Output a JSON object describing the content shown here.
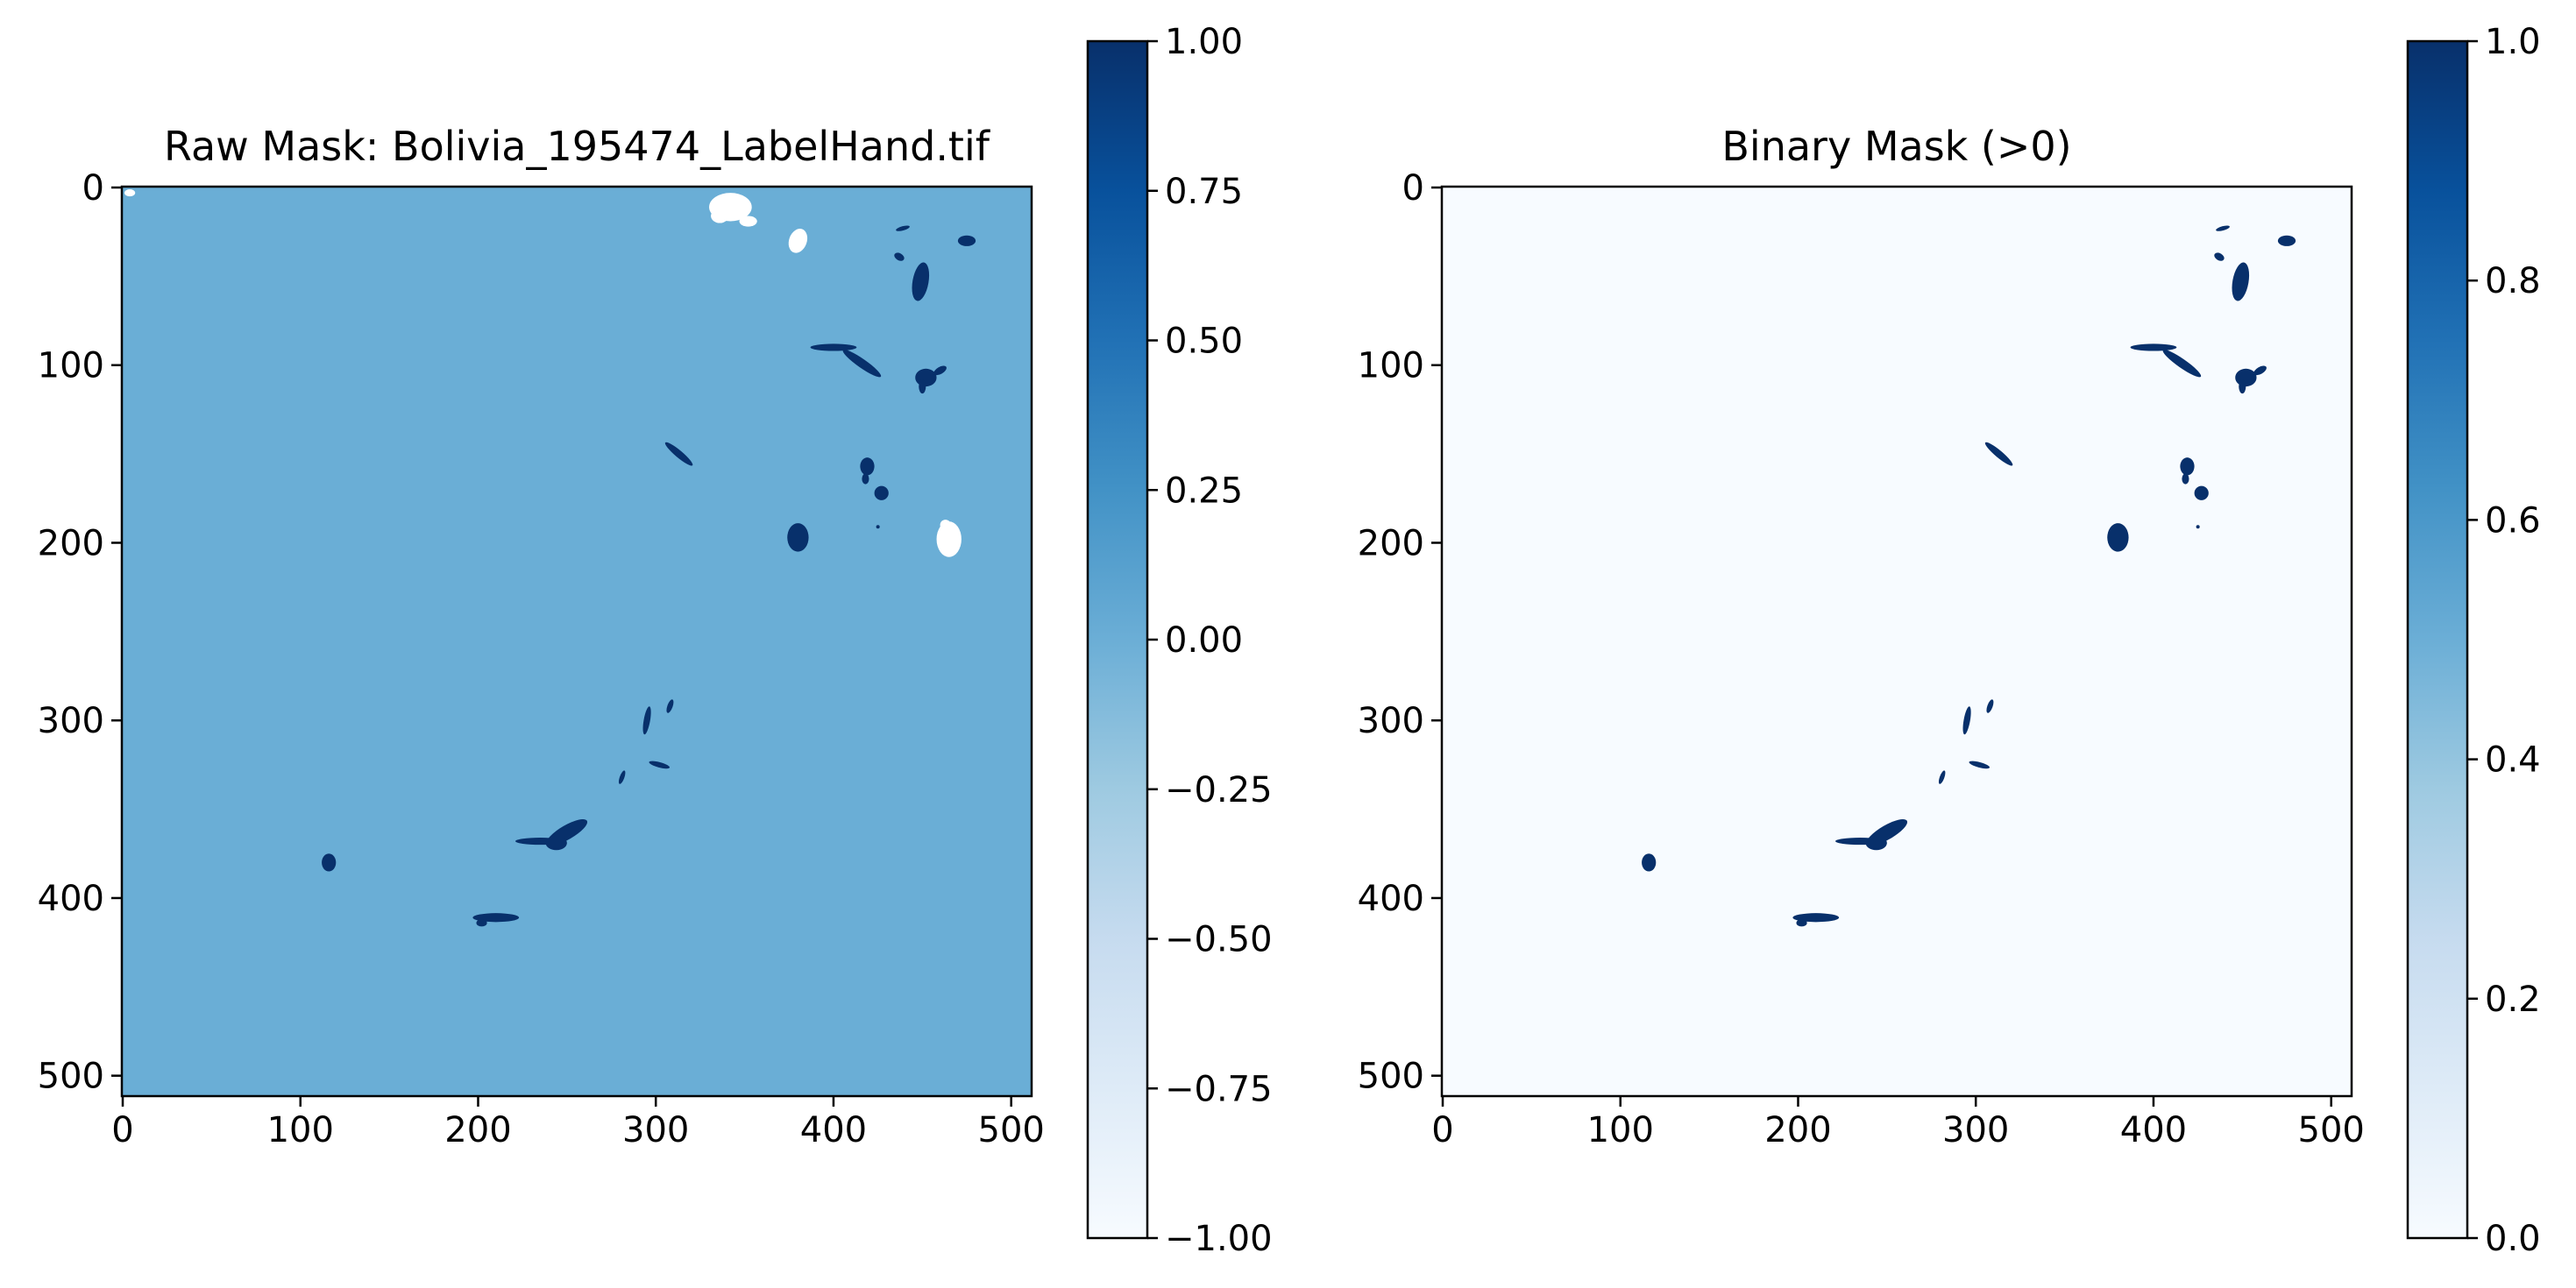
{
  "chart_data": [
    {
      "type": "heatmap",
      "title": "Raw Mask: Bolivia_195474_LabelHand.tif",
      "xlabel": "",
      "ylabel": "",
      "xlim": [
        0,
        511
      ],
      "ylim": [
        511,
        0
      ],
      "xticks": [
        0,
        100,
        200,
        300,
        400,
        500
      ],
      "yticks": [
        0,
        100,
        200,
        300,
        400,
        500
      ],
      "xtick_labels": [
        "0",
        "100",
        "200",
        "300",
        "400",
        "500"
      ],
      "ytick_labels": [
        "0",
        "100",
        "200",
        "300",
        "400",
        "500"
      ],
      "colormap": "Blues",
      "background_value": 0,
      "background_color": "#6aaed6",
      "water_value": 1,
      "water_color": "#08306b",
      "nodata_value": -1,
      "nodata_color": "#ffffff",
      "colorbar": {
        "min": -1,
        "max": 1,
        "ticks": [
          -1,
          -0.75,
          -0.5,
          -0.25,
          0,
          0.25,
          0.5,
          0.75,
          1
        ],
        "tick_labels": [
          "−1.00",
          "−0.75",
          "−0.50",
          "−0.25",
          "0.00",
          "0.25",
          "0.50",
          "0.75",
          "1.00"
        ]
      }
    },
    {
      "type": "heatmap",
      "title": "Binary Mask (>0)",
      "xlabel": "",
      "ylabel": "",
      "xlim": [
        0,
        511
      ],
      "ylim": [
        511,
        0
      ],
      "xticks": [
        0,
        100,
        200,
        300,
        400,
        500
      ],
      "yticks": [
        0,
        100,
        200,
        300,
        400,
        500
      ],
      "xtick_labels": [
        "0",
        "100",
        "200",
        "300",
        "400",
        "500"
      ],
      "ytick_labels": [
        "0",
        "100",
        "200",
        "300",
        "400",
        "500"
      ],
      "colormap": "Blues",
      "background_value": 0,
      "background_color": "#f7fbff",
      "water_value": 1,
      "water_color": "#08306b",
      "colorbar": {
        "min": 0,
        "max": 1,
        "ticks": [
          0,
          0.2,
          0.4,
          0.6,
          0.8,
          1
        ],
        "tick_labels": [
          "0.0",
          "0.2",
          "0.4",
          "0.6",
          "0.8",
          "1.0"
        ]
      }
    }
  ],
  "mask_regions": {
    "water": [
      {
        "x": 116,
        "y": 380,
        "rx": 4,
        "ry": 5,
        "angle": 0
      },
      {
        "x": 210,
        "y": 411,
        "rx": 13,
        "ry": 2.5,
        "angle": 0
      },
      {
        "x": 202,
        "y": 414,
        "rx": 3,
        "ry": 2,
        "angle": 0
      },
      {
        "x": 235,
        "y": 368,
        "rx": 14,
        "ry": 2,
        "angle": 0
      },
      {
        "x": 250,
        "y": 363,
        "rx": 13,
        "ry": 4,
        "angle": -30
      },
      {
        "x": 244,
        "y": 369,
        "rx": 6,
        "ry": 4,
        "angle": 0
      },
      {
        "x": 295,
        "y": 300,
        "rx": 1.8,
        "ry": 8,
        "angle": 10
      },
      {
        "x": 308,
        "y": 292,
        "rx": 1.5,
        "ry": 4,
        "angle": 20
      },
      {
        "x": 302,
        "y": 325,
        "rx": 6,
        "ry": 1.5,
        "angle": 15
      },
      {
        "x": 281,
        "y": 332,
        "rx": 1.3,
        "ry": 4,
        "angle": 20
      },
      {
        "x": 380,
        "y": 197,
        "rx": 6,
        "ry": 8,
        "angle": 0
      },
      {
        "x": 419,
        "y": 157,
        "rx": 4,
        "ry": 5,
        "angle": 0
      },
      {
        "x": 418,
        "y": 164,
        "rx": 2,
        "ry": 3,
        "angle": 0
      },
      {
        "x": 427,
        "y": 172,
        "rx": 4,
        "ry": 4,
        "angle": 0
      },
      {
        "x": 313,
        "y": 150,
        "rx": 10,
        "ry": 2,
        "angle": 40
      },
      {
        "x": 400,
        "y": 90,
        "rx": 13,
        "ry": 2,
        "angle": 0
      },
      {
        "x": 416,
        "y": 99,
        "rx": 13,
        "ry": 2.5,
        "angle": 35
      },
      {
        "x": 452,
        "y": 107,
        "rx": 6,
        "ry": 5,
        "angle": 0
      },
      {
        "x": 460,
        "y": 103,
        "rx": 4,
        "ry": 2,
        "angle": -30
      },
      {
        "x": 450,
        "y": 112,
        "rx": 2,
        "ry": 4,
        "angle": 0
      },
      {
        "x": 449,
        "y": 53,
        "rx": 4.5,
        "ry": 11,
        "angle": 10
      },
      {
        "x": 475,
        "y": 30,
        "rx": 5,
        "ry": 3,
        "angle": 0
      },
      {
        "x": 437,
        "y": 39,
        "rx": 3,
        "ry": 2,
        "angle": 30
      },
      {
        "x": 439,
        "y": 23,
        "rx": 4,
        "ry": 1.2,
        "angle": -15
      },
      {
        "x": 425,
        "y": 191,
        "rx": 1,
        "ry": 1,
        "angle": 0
      }
    ],
    "nodata": [
      {
        "x": 342,
        "y": 11,
        "rx": 12,
        "ry": 8,
        "angle": 0
      },
      {
        "x": 336,
        "y": 16,
        "rx": 5,
        "ry": 4,
        "angle": 0
      },
      {
        "x": 352,
        "y": 19,
        "rx": 5,
        "ry": 3,
        "angle": 0
      },
      {
        "x": 380,
        "y": 30,
        "rx": 5,
        "ry": 7,
        "angle": 20
      },
      {
        "x": 465,
        "y": 198,
        "rx": 7,
        "ry": 10,
        "angle": 0
      },
      {
        "x": 463,
        "y": 190,
        "rx": 3,
        "ry": 3,
        "angle": 0
      },
      {
        "x": 4,
        "y": 3,
        "rx": 3,
        "ry": 2,
        "angle": 0
      }
    ]
  }
}
